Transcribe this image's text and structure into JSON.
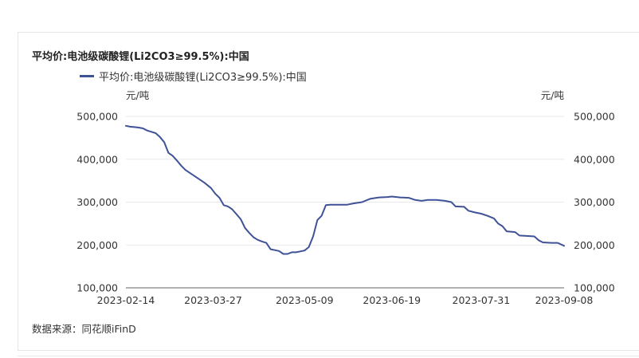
{
  "chart": {
    "title": "平均价:电池级碳酸锂(Li2CO3≥99.5%):中国",
    "legend_label": "平均价:电池级碳酸锂(Li2CO3≥99.5%):中国",
    "unit_left": "元/吨",
    "unit_right": "元/吨",
    "footer": "数据来源：同花顺iFinD"
  },
  "chart_data": {
    "type": "line",
    "title": "平均价:电池级碳酸锂(Li2CO3≥99.5%):中国",
    "ylabel": "元/吨",
    "ylim": [
      100000,
      500000
    ],
    "y_ticks": [
      "500,000",
      "400,000",
      "300,000",
      "200,000",
      "100,000"
    ],
    "y_tick_values": [
      500000,
      400000,
      300000,
      200000,
      100000
    ],
    "x_ticks": [
      "2023-02-14",
      "2023-03-27",
      "2023-05-09",
      "2023-06-19",
      "2023-07-31",
      "2023-09-08"
    ],
    "xlim": [
      "2023-02-14",
      "2023-09-08"
    ],
    "line_color": "#3f5297",
    "grid": true,
    "legend_position": "top-left",
    "series": [
      {
        "name": "平均价:电池级碳酸锂(Li2CO3≥99.5%):中国",
        "points": [
          [
            "2023-02-14",
            478000
          ],
          [
            "2023-02-16",
            476000
          ],
          [
            "2023-02-18",
            475000
          ],
          [
            "2023-02-20",
            474000
          ],
          [
            "2023-02-22",
            472000
          ],
          [
            "2023-02-24",
            467000
          ],
          [
            "2023-02-26",
            464000
          ],
          [
            "2023-02-28",
            461000
          ],
          [
            "2023-03-02",
            452000
          ],
          [
            "2023-03-04",
            440000
          ],
          [
            "2023-03-06",
            415000
          ],
          [
            "2023-03-08",
            408000
          ],
          [
            "2023-03-10",
            397000
          ],
          [
            "2023-03-12",
            385000
          ],
          [
            "2023-03-14",
            375000
          ],
          [
            "2023-03-17",
            365000
          ],
          [
            "2023-03-20",
            355000
          ],
          [
            "2023-03-23",
            345000
          ],
          [
            "2023-03-26",
            333000
          ],
          [
            "2023-03-28",
            320000
          ],
          [
            "2023-03-30",
            310000
          ],
          [
            "2023-04-01",
            293000
          ],
          [
            "2023-04-03",
            290000
          ],
          [
            "2023-04-05",
            283000
          ],
          [
            "2023-04-07",
            272000
          ],
          [
            "2023-04-09",
            260000
          ],
          [
            "2023-04-11",
            240000
          ],
          [
            "2023-04-13",
            228000
          ],
          [
            "2023-04-15",
            218000
          ],
          [
            "2023-04-17",
            212000
          ],
          [
            "2023-04-19",
            208000
          ],
          [
            "2023-04-21",
            205000
          ],
          [
            "2023-04-23",
            190000
          ],
          [
            "2023-04-25",
            188000
          ],
          [
            "2023-04-27",
            186000
          ],
          [
            "2023-04-29",
            179000
          ],
          [
            "2023-05-01",
            179000
          ],
          [
            "2023-05-03",
            183000
          ],
          [
            "2023-05-05",
            183000
          ],
          [
            "2023-05-07",
            185000
          ],
          [
            "2023-05-09",
            187000
          ],
          [
            "2023-05-11",
            195000
          ],
          [
            "2023-05-13",
            220000
          ],
          [
            "2023-05-15",
            258000
          ],
          [
            "2023-05-17",
            268000
          ],
          [
            "2023-05-19",
            293000
          ],
          [
            "2023-05-21",
            294000
          ],
          [
            "2023-05-25",
            294000
          ],
          [
            "2023-05-29",
            294000
          ],
          [
            "2023-06-01",
            297000
          ],
          [
            "2023-06-05",
            300000
          ],
          [
            "2023-06-09",
            308000
          ],
          [
            "2023-06-13",
            311000
          ],
          [
            "2023-06-17",
            312000
          ],
          [
            "2023-06-19",
            313000
          ],
          [
            "2023-06-23",
            311000
          ],
          [
            "2023-06-27",
            310000
          ],
          [
            "2023-06-30",
            305000
          ],
          [
            "2023-07-03",
            303000
          ],
          [
            "2023-07-06",
            305000
          ],
          [
            "2023-07-10",
            305000
          ],
          [
            "2023-07-14",
            303000
          ],
          [
            "2023-07-17",
            300000
          ],
          [
            "2023-07-19",
            290000
          ],
          [
            "2023-07-23",
            289000
          ],
          [
            "2023-07-25",
            280000
          ],
          [
            "2023-07-28",
            276000
          ],
          [
            "2023-07-31",
            273000
          ],
          [
            "2023-08-03",
            268000
          ],
          [
            "2023-08-06",
            262000
          ],
          [
            "2023-08-08",
            250000
          ],
          [
            "2023-08-10",
            244000
          ],
          [
            "2023-08-12",
            232000
          ],
          [
            "2023-08-16",
            230000
          ],
          [
            "2023-08-18",
            222000
          ],
          [
            "2023-08-22",
            221000
          ],
          [
            "2023-08-25",
            220000
          ],
          [
            "2023-08-27",
            211000
          ],
          [
            "2023-08-29",
            206000
          ],
          [
            "2023-09-02",
            205000
          ],
          [
            "2023-09-05",
            205000
          ],
          [
            "2023-09-08",
            198000
          ]
        ]
      }
    ]
  }
}
